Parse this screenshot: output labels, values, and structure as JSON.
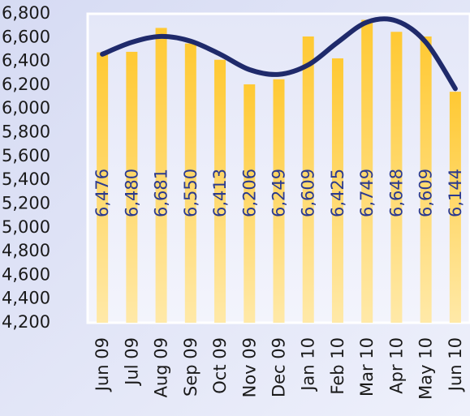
{
  "chart_data": {
    "type": "bar",
    "categories": [
      "Jun 09",
      "Jul 09",
      "Aug 09",
      "Sep 09",
      "Oct 09",
      "Nov 09",
      "Dec 09",
      "Jan 10",
      "Feb 10",
      "Mar 10",
      "Apr 10",
      "May 10",
      "Jun 10"
    ],
    "values": [
      6476,
      6480,
      6681,
      6550,
      6413,
      6206,
      6249,
      6609,
      6425,
      6749,
      6648,
      6609,
      6144
    ],
    "value_labels": [
      "6,476",
      "6,480",
      "6,681",
      "6,550",
      "6,413",
      "6,206",
      "6,249",
      "6,609",
      "6,425",
      "6,749",
      "6,648",
      "6,609",
      "6,144"
    ],
    "color": "#ffcc33",
    "trendline": {
      "color": "#1f2a6b",
      "values": [
        6460,
        6560,
        6610,
        6570,
        6460,
        6330,
        6290,
        6370,
        6560,
        6730,
        6740,
        6560,
        6170
      ]
    },
    "ylim": [
      4200,
      6800
    ],
    "yticks": [
      {
        "value": 4200,
        "label": "4,200"
      },
      {
        "value": 4400,
        "label": "4,400"
      },
      {
        "value": 4600,
        "label": "4,600"
      },
      {
        "value": 4800,
        "label": "4,800"
      },
      {
        "value": 5000,
        "label": "5,000"
      },
      {
        "value": 5200,
        "label": "5,200"
      },
      {
        "value": 5400,
        "label": "5,400"
      },
      {
        "value": 5600,
        "label": "5,600"
      },
      {
        "value": 5800,
        "label": "5,800"
      },
      {
        "value": 6000,
        "label": "6,000"
      },
      {
        "value": 6200,
        "label": "6,200"
      },
      {
        "value": 6400,
        "label": "6,400"
      },
      {
        "value": 6600,
        "label": "6,600"
      },
      {
        "value": 6800,
        "label": "6,800"
      }
    ],
    "grid": false
  }
}
